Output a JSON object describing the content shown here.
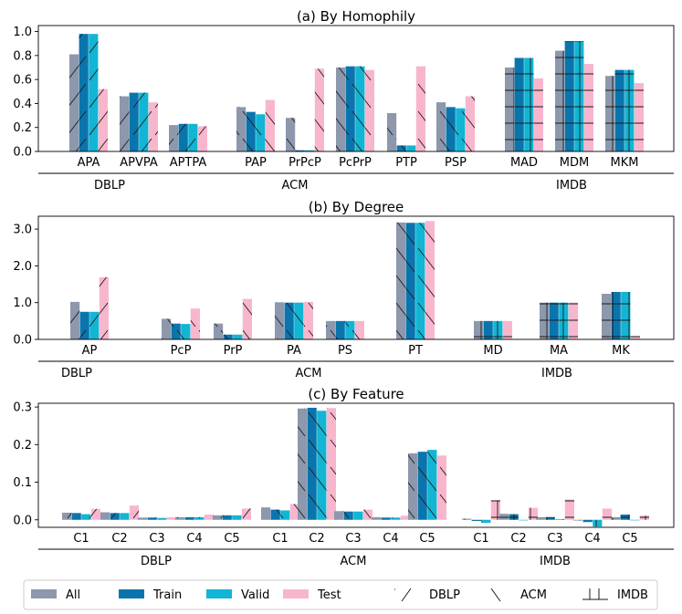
{
  "colors": {
    "All": "#8d98ac",
    "Train": "#0a75ad",
    "Valid": "#12b5d4",
    "Test": "#f8b6cd"
  },
  "legend": {
    "bars": [
      "All",
      "Train",
      "Valid",
      "Test"
    ],
    "hatches": [
      {
        "label": "DBLP",
        "pattern": "fwd"
      },
      {
        "label": "ACM",
        "pattern": "back"
      },
      {
        "label": "IMDB",
        "pattern": "cross"
      }
    ]
  },
  "chart_data": [
    {
      "type": "bar",
      "title": "(a) By Homophily",
      "ylim": [
        0,
        1.05
      ],
      "yticks": [
        "0.0",
        "0.2",
        "0.4",
        "0.6",
        "0.8",
        "1.0"
      ],
      "ytick_values": [
        0,
        0.2,
        0.4,
        0.6,
        0.8,
        1.0
      ],
      "series": [
        "All",
        "Train",
        "Valid",
        "Test"
      ],
      "groups": [
        {
          "name": "DBLP",
          "hatch": "fwd",
          "categories": [
            {
              "label": "APA",
              "values": [
                0.81,
                0.98,
                0.98,
                0.52
              ]
            },
            {
              "label": "APVPA",
              "values": [
                0.46,
                0.49,
                0.49,
                0.41
              ]
            },
            {
              "label": "APTPA",
              "values": [
                0.22,
                0.23,
                0.23,
                0.21
              ]
            }
          ]
        },
        {
          "name": "ACM",
          "hatch": "back",
          "categories": [
            {
              "label": "PAP",
              "values": [
                0.37,
                0.33,
                0.31,
                0.43
              ]
            },
            {
              "label": "PrPcP",
              "values": [
                0.28,
                0.01,
                0.01,
                0.69
              ]
            },
            {
              "label": "PcPrP",
              "values": [
                0.7,
                0.71,
                0.71,
                0.68
              ]
            },
            {
              "label": "PTP",
              "values": [
                0.32,
                0.05,
                0.05,
                0.71
              ]
            },
            {
              "label": "PSP",
              "values": [
                0.41,
                0.37,
                0.36,
                0.46
              ]
            }
          ]
        },
        {
          "name": "IMDB",
          "hatch": "cross",
          "categories": [
            {
              "label": "MAD",
              "values": [
                0.7,
                0.78,
                0.78,
                0.61
              ]
            },
            {
              "label": "MDM",
              "values": [
                0.84,
                0.92,
                0.92,
                0.73
              ]
            },
            {
              "label": "MKM",
              "values": [
                0.63,
                0.68,
                0.68,
                0.57
              ]
            }
          ]
        }
      ]
    },
    {
      "type": "bar",
      "title": "(b) By Degree",
      "ylim": [
        0,
        3.35
      ],
      "yticks": [
        "0.0",
        "1.0",
        "2.0",
        "3.0"
      ],
      "ytick_values": [
        0,
        1.0,
        2.0,
        3.0
      ],
      "series": [
        "All",
        "Train",
        "Valid",
        "Test"
      ],
      "groups": [
        {
          "name": "DBLP",
          "hatch": "fwd",
          "categories": [
            {
              "label": "AP",
              "values": [
                1.02,
                0.75,
                0.75,
                1.69
              ]
            }
          ]
        },
        {
          "name": "ACM",
          "hatch": "back",
          "categories": [
            {
              "label": "PcP",
              "values": [
                0.56,
                0.43,
                0.42,
                0.84
              ]
            },
            {
              "label": "PrP",
              "values": [
                0.43,
                0.13,
                0.13,
                1.1
              ]
            },
            {
              "label": "PA",
              "values": [
                1.01,
                1.0,
                1.0,
                1.02
              ]
            },
            {
              "label": "PS",
              "values": [
                0.5,
                0.5,
                0.5,
                0.5
              ]
            },
            {
              "label": "PT",
              "values": [
                3.18,
                3.17,
                3.17,
                3.22
              ]
            }
          ]
        },
        {
          "name": "IMDB",
          "hatch": "cross",
          "categories": [
            {
              "label": "MD",
              "values": [
                0.5,
                0.5,
                0.5,
                0.5
              ]
            },
            {
              "label": "MA",
              "values": [
                1.0,
                1.0,
                1.0,
                1.0
              ]
            },
            {
              "label": "MK",
              "values": [
                1.24,
                1.29,
                1.29,
                0.09
              ]
            }
          ]
        }
      ]
    },
    {
      "type": "bar",
      "title": "(c) By Feature",
      "ylim": [
        -0.02,
        0.31
      ],
      "yticks": [
        "0.0",
        "0.1",
        "0.2",
        "0.3"
      ],
      "ytick_values": [
        0,
        0.1,
        0.2,
        0.3
      ],
      "series": [
        "All",
        "Train",
        "Valid",
        "Test"
      ],
      "groups": [
        {
          "name": "DBLP",
          "hatch": "fwd",
          "categories": [
            {
              "label": "C1",
              "values": [
                0.019,
                0.018,
                0.015,
                0.029
              ]
            },
            {
              "label": "C2",
              "values": [
                0.02,
                0.018,
                0.018,
                0.038
              ]
            },
            {
              "label": "C3",
              "values": [
                0.006,
                0.006,
                0.005,
                0.007
              ]
            },
            {
              "label": "C4",
              "values": [
                0.007,
                0.007,
                0.007,
                0.014
              ]
            },
            {
              "label": "C5",
              "values": [
                0.012,
                0.012,
                0.012,
                0.03
              ]
            }
          ]
        },
        {
          "name": "ACM",
          "hatch": "back",
          "categories": [
            {
              "label": "C1",
              "values": [
                0.033,
                0.027,
                0.025,
                0.042
              ]
            },
            {
              "label": "C2",
              "values": [
                0.296,
                0.298,
                0.29,
                0.297
              ]
            },
            {
              "label": "C3",
              "values": [
                0.023,
                0.022,
                0.022,
                0.027
              ]
            },
            {
              "label": "C4",
              "values": [
                0.007,
                0.006,
                0.006,
                0.011
              ]
            },
            {
              "label": "C5",
              "values": [
                0.177,
                0.181,
                0.186,
                0.171
              ]
            }
          ]
        },
        {
          "name": "IMDB",
          "hatch": "cross",
          "categories": [
            {
              "label": "C1",
              "values": [
                0.003,
                -0.003,
                -0.008,
                0.052
              ]
            },
            {
              "label": "C2",
              "values": [
                0.016,
                0.015,
                0.0,
                0.032
              ]
            },
            {
              "label": "C3",
              "values": [
                0.006,
                0.007,
                0.002,
                0.054
              ]
            },
            {
              "label": "C4",
              "values": [
                -0.002,
                -0.006,
                -0.018,
                0.03
              ]
            },
            {
              "label": "C5",
              "values": [
                0.006,
                0.014,
                0.0,
                0.011
              ]
            }
          ]
        }
      ]
    }
  ]
}
